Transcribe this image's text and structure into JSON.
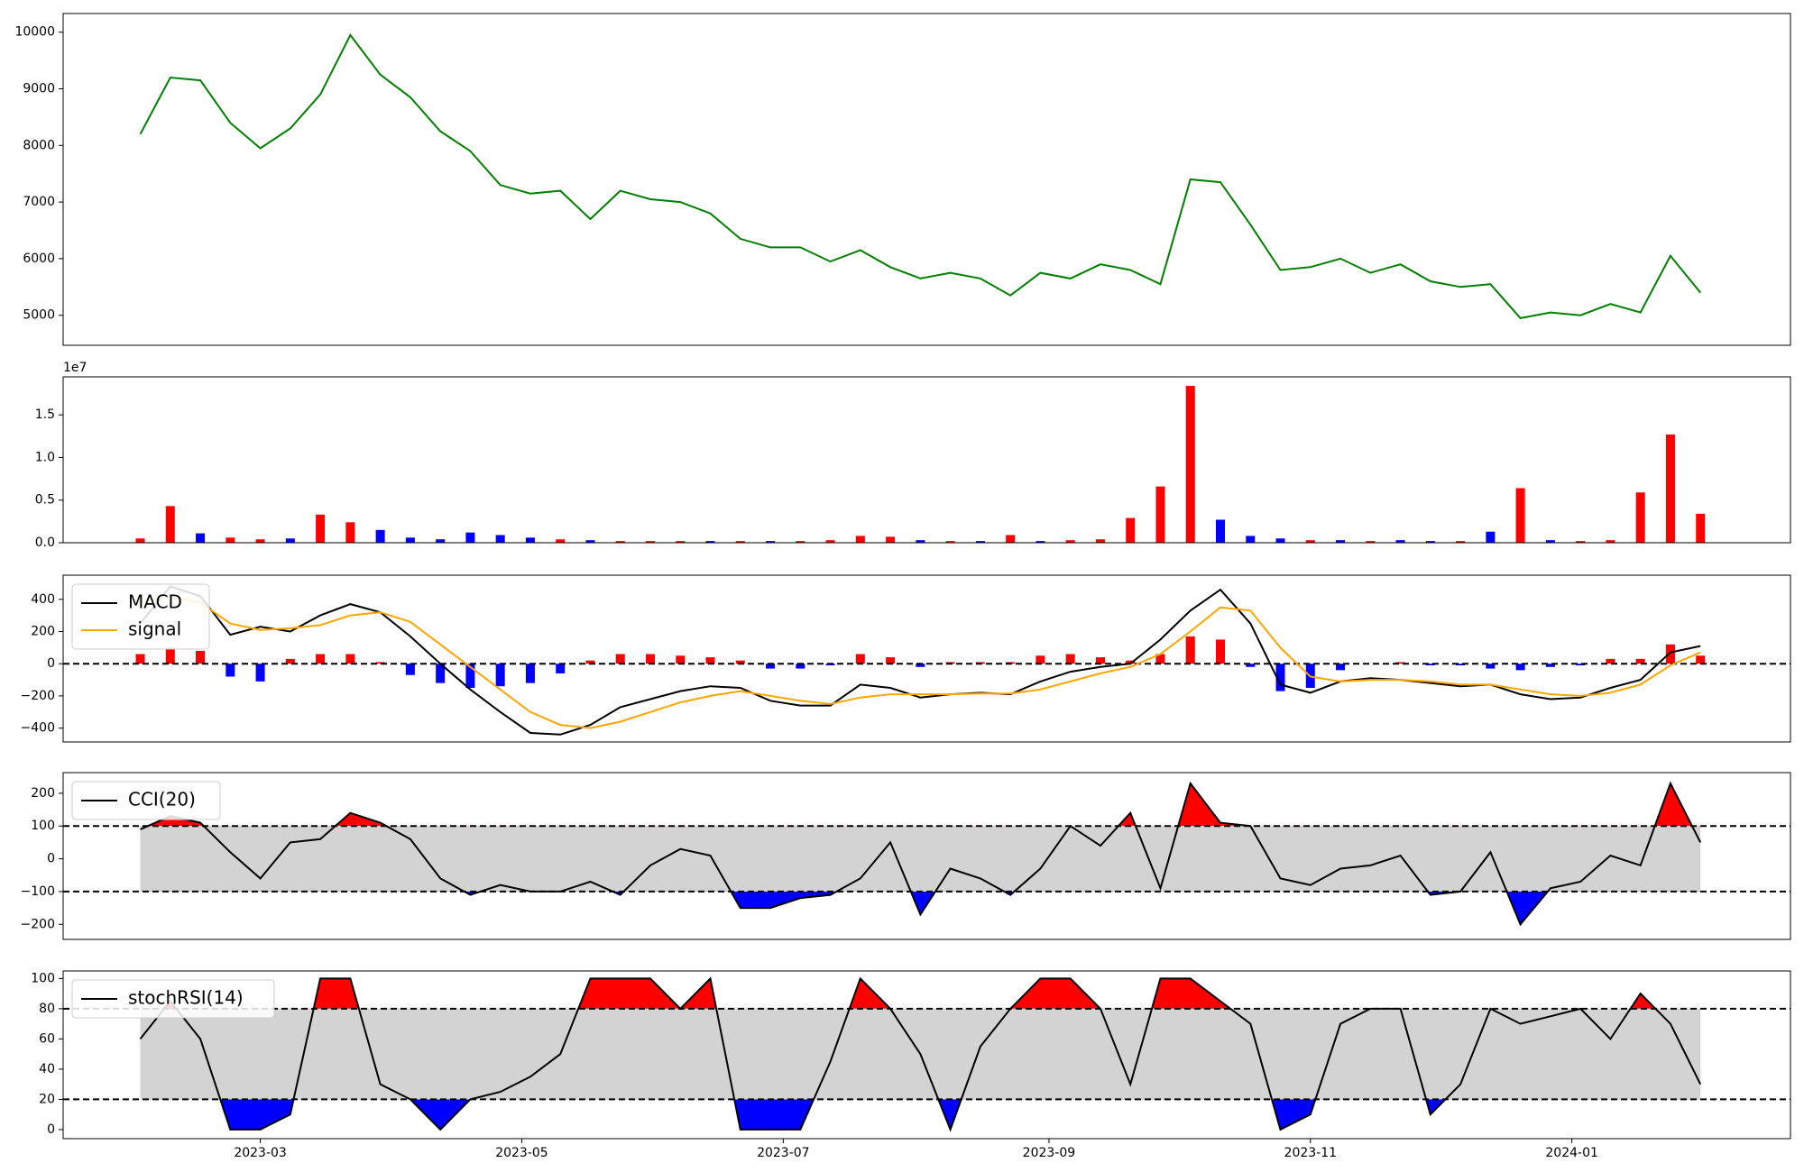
{
  "chart_data": [
    {
      "type": "line",
      "xlim": [
        -18,
        385
      ],
      "ylim": [
        4470,
        10330
      ],
      "yticks": [
        5000,
        6000,
        7000,
        8000,
        9000,
        10000
      ],
      "x": [
        0,
        7,
        14,
        21,
        28,
        35,
        42,
        49,
        56,
        63,
        70,
        77,
        84,
        91,
        98,
        105,
        112,
        119,
        126,
        133,
        140,
        147,
        154,
        161,
        168,
        175,
        182,
        189,
        196,
        203,
        210,
        217,
        224,
        231,
        238,
        245,
        252,
        259,
        266,
        273,
        280,
        287,
        294,
        301,
        308,
        315,
        322,
        329,
        336,
        343,
        350,
        357,
        364
      ],
      "series": [
        {
          "color": "#008000",
          "values": [
            8200,
            9200,
            9150,
            8400,
            7950,
            8300,
            8900,
            9950,
            9250,
            8850,
            8250,
            7900,
            7300,
            7150,
            7200,
            6700,
            7200,
            7050,
            7000,
            6800,
            6350,
            6200,
            6200,
            5950,
            6150,
            5850,
            5650,
            5750,
            5650,
            5350,
            5750,
            5650,
            5900,
            5800,
            5550,
            7400,
            7350,
            6600,
            5800,
            5850,
            6000,
            5750,
            5900,
            5600,
            5500,
            5550,
            4950,
            5050,
            5000,
            5200,
            5050,
            6050,
            5400
          ]
        }
      ]
    },
    {
      "type": "bar",
      "xlim": [
        -18,
        385
      ],
      "ylim": [
        0,
        19460000
      ],
      "offset_label": "1e7",
      "yticks": [
        {
          "value": 0,
          "label": "0.0"
        },
        {
          "value": 5000000,
          "label": "0.5"
        },
        {
          "value": 10000000,
          "label": "1.0"
        },
        {
          "value": 15000000,
          "label": "1.5"
        }
      ],
      "x": [
        0,
        7,
        14,
        21,
        28,
        35,
        42,
        49,
        56,
        63,
        70,
        77,
        84,
        91,
        98,
        105,
        112,
        119,
        126,
        133,
        140,
        147,
        154,
        161,
        168,
        175,
        182,
        189,
        196,
        203,
        210,
        217,
        224,
        231,
        238,
        245,
        252,
        259,
        266,
        273,
        280,
        287,
        294,
        301,
        308,
        315,
        322,
        329,
        336,
        343,
        350,
        357,
        364
      ],
      "values": [
        500000,
        4300000,
        1100000,
        600000,
        400000,
        500000,
        3300000,
        2400000,
        1500000,
        600000,
        400000,
        1200000,
        900000,
        600000,
        400000,
        300000,
        200000,
        200000,
        200000,
        200000,
        200000,
        200000,
        200000,
        300000,
        800000,
        700000,
        300000,
        200000,
        200000,
        900000,
        200000,
        300000,
        400000,
        2900000,
        6600000,
        18400000,
        2700000,
        800000,
        500000,
        300000,
        300000,
        200000,
        300000,
        200000,
        200000,
        1300000,
        6400000,
        300000,
        200000,
        300000,
        5900000,
        12700000,
        3400000
      ],
      "colors": [
        "red",
        "red",
        "blue",
        "red",
        "red",
        "blue",
        "red",
        "red",
        "blue",
        "blue",
        "blue",
        "blue",
        "blue",
        "blue",
        "red",
        "blue",
        "red",
        "red",
        "red",
        "blue",
        "red",
        "blue",
        "red",
        "red",
        "red",
        "red",
        "blue",
        "red",
        "blue",
        "red",
        "blue",
        "red",
        "red",
        "red",
        "red",
        "red",
        "blue",
        "blue",
        "blue",
        "red",
        "blue",
        "red",
        "blue",
        "blue",
        "red",
        "blue",
        "red",
        "blue",
        "red",
        "red",
        "red",
        "red",
        "red"
      ]
    },
    {
      "type": "macd",
      "xlim": [
        -18,
        385
      ],
      "ylim": [
        -486,
        550
      ],
      "legend": "upper left",
      "hlines": [
        0
      ],
      "yticks": [
        {
          "value": -400,
          "label": "−400"
        },
        {
          "value": -200,
          "label": "−200"
        },
        0,
        200,
        400
      ],
      "x": [
        0,
        7,
        14,
        21,
        28,
        35,
        42,
        49,
        56,
        63,
        70,
        77,
        84,
        91,
        98,
        105,
        112,
        119,
        126,
        133,
        140,
        147,
        154,
        161,
        168,
        175,
        182,
        189,
        196,
        203,
        210,
        217,
        224,
        231,
        238,
        245,
        252,
        259,
        266,
        273,
        280,
        287,
        294,
        301,
        308,
        315,
        322,
        329,
        336,
        343,
        350,
        357,
        364
      ],
      "series": [
        {
          "name": "MACD",
          "color": "#000000",
          "values": [
            250,
            480,
            420,
            180,
            230,
            200,
            300,
            370,
            320,
            170,
            0,
            -160,
            -300,
            -430,
            -440,
            -380,
            -270,
            -220,
            -170,
            -140,
            -150,
            -230,
            -260,
            -260,
            -130,
            -150,
            -210,
            -190,
            -180,
            -190,
            -110,
            -50,
            -20,
            0,
            150,
            330,
            460,
            250,
            -130,
            -180,
            -110,
            -90,
            -100,
            -120,
            -140,
            -130,
            -190,
            -220,
            -210,
            -150,
            -100,
            70,
            110
          ]
        },
        {
          "name": "signal",
          "color": "#ffa500",
          "values": [
            380,
            420,
            380,
            250,
            210,
            220,
            240,
            300,
            320,
            260,
            120,
            -20,
            -160,
            -300,
            -380,
            -400,
            -360,
            -300,
            -240,
            -200,
            -170,
            -200,
            -230,
            -250,
            -210,
            -190,
            -190,
            -190,
            -185,
            -185,
            -160,
            -110,
            -60,
            -20,
            60,
            200,
            350,
            330,
            100,
            -80,
            -110,
            -100,
            -100,
            -110,
            -130,
            -130,
            -160,
            -190,
            -200,
            -180,
            -130,
            -10,
            70
          ]
        }
      ],
      "hist": [
        60,
        100,
        80,
        -80,
        -110,
        30,
        60,
        60,
        10,
        -70,
        -120,
        -150,
        -140,
        -120,
        -60,
        20,
        60,
        60,
        50,
        40,
        20,
        -30,
        -30,
        -10,
        60,
        40,
        -20,
        10,
        10,
        10,
        50,
        60,
        40,
        20,
        60,
        170,
        150,
        -20,
        -170,
        -150,
        -40,
        0,
        10,
        -10,
        -10,
        -30,
        -40,
        -20,
        -10,
        30,
        30,
        120,
        50
      ],
      "hist_up_color": "red",
      "hist_down_color": "blue"
    },
    {
      "type": "oscillator",
      "xlim": [
        -18,
        385
      ],
      "ylim": [
        -246,
        263
      ],
      "legend": "upper left",
      "hlines": [
        100,
        -100
      ],
      "band_color": "#d3d3d3",
      "upper_color": "red",
      "lower_color": "blue",
      "yticks": [
        {
          "value": -200,
          "label": "−200"
        },
        {
          "value": -100,
          "label": "−100"
        },
        0,
        100,
        200
      ],
      "x": [
        0,
        7,
        14,
        21,
        28,
        35,
        42,
        49,
        56,
        63,
        70,
        77,
        84,
        91,
        98,
        105,
        112,
        119,
        126,
        133,
        140,
        147,
        154,
        161,
        168,
        175,
        182,
        189,
        196,
        203,
        210,
        217,
        224,
        231,
        238,
        245,
        252,
        259,
        266,
        273,
        280,
        287,
        294,
        301,
        308,
        315,
        322,
        329,
        336,
        343,
        350,
        357,
        364
      ],
      "series": [
        {
          "name": "CCI(20)",
          "color": "#000000",
          "values": [
            90,
            130,
            110,
            20,
            -60,
            50,
            60,
            140,
            110,
            60,
            -60,
            -110,
            -80,
            -100,
            -100,
            -70,
            -110,
            -20,
            30,
            10,
            -150,
            -150,
            -120,
            -110,
            -60,
            50,
            -170,
            -30,
            -60,
            -110,
            -30,
            100,
            40,
            140,
            -90,
            230,
            110,
            100,
            -60,
            -80,
            -30,
            -20,
            10,
            -110,
            -100,
            20,
            -200,
            -90,
            -70,
            10,
            -20,
            230,
            50
          ]
        }
      ]
    },
    {
      "type": "oscillator",
      "xlim": [
        -18,
        385
      ],
      "ylim": [
        -6,
        105
      ],
      "legend": "upper left",
      "hlines": [
        80,
        20
      ],
      "band_color": "#d3d3d3",
      "upper_color": "red",
      "lower_color": "blue",
      "yticks": [
        0,
        20,
        40,
        60,
        80,
        100
      ],
      "xticks": [
        {
          "value": 28,
          "label": "2023-03"
        },
        {
          "value": 89,
          "label": "2023-05"
        },
        {
          "value": 150,
          "label": "2023-07"
        },
        {
          "value": 212,
          "label": "2023-09"
        },
        {
          "value": 273,
          "label": "2023-11"
        },
        {
          "value": 334,
          "label": "2024-01"
        }
      ],
      "x": [
        0,
        7,
        14,
        21,
        28,
        35,
        42,
        49,
        56,
        63,
        70,
        77,
        84,
        91,
        98,
        105,
        112,
        119,
        126,
        133,
        140,
        147,
        154,
        161,
        168,
        175,
        182,
        189,
        196,
        203,
        210,
        217,
        224,
        231,
        238,
        245,
        252,
        259,
        266,
        273,
        280,
        287,
        294,
        301,
        308,
        315,
        322,
        329,
        336,
        343,
        350,
        357,
        364
      ],
      "series": [
        {
          "name": "stochRSI(14)",
          "color": "#000000",
          "values": [
            60,
            85,
            60,
            0,
            0,
            10,
            100,
            100,
            30,
            20,
            0,
            20,
            25,
            35,
            50,
            100,
            100,
            100,
            80,
            100,
            0,
            0,
            0,
            45,
            100,
            80,
            50,
            0,
            55,
            80,
            100,
            100,
            80,
            30,
            100,
            100,
            85,
            70,
            0,
            10,
            70,
            80,
            80,
            10,
            30,
            80,
            70,
            75,
            80,
            60,
            90,
            70,
            30
          ]
        }
      ]
    }
  ]
}
